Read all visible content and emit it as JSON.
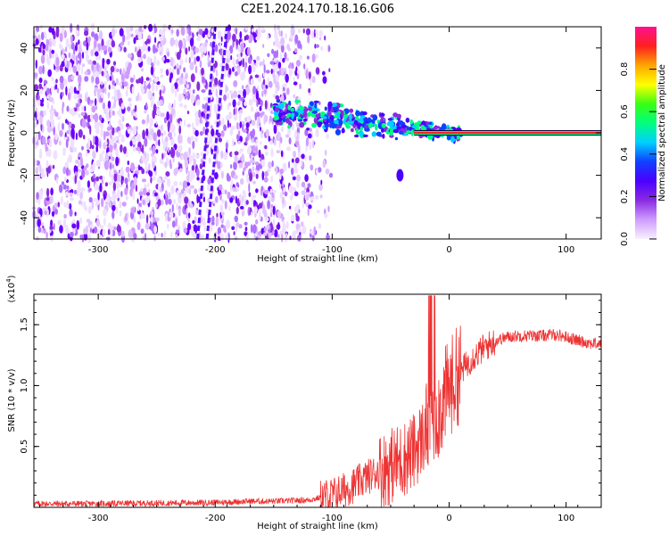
{
  "title": "C2E1.2024.170.18.16.G06",
  "colors": {
    "frame": "#000000",
    "snr_line": "#ee3333",
    "cmap": [
      "#f8f0ff",
      "#cf9cff",
      "#8a2be2",
      "#4b00ff",
      "#1040ff",
      "#00cfff",
      "#00ff7f",
      "#39ff14",
      "#ffff00",
      "#ffa500",
      "#ff2020",
      "#ff1090"
    ]
  },
  "chart_data": [
    {
      "type": "heatmap",
      "name": "spectrogram",
      "xlabel": "Height of straight line (km)",
      "ylabel": "Frequency (Hz)",
      "xlim": [
        -355,
        130
      ],
      "ylim": [
        -50,
        50
      ],
      "xticks": [
        -300,
        -200,
        -100,
        0,
        100
      ],
      "yticks": [
        -40,
        -20,
        0,
        20,
        40
      ],
      "colorbar": {
        "label": "Normalized spectral amplitude",
        "range": [
          0,
          1
        ],
        "ticks": [
          "0.0",
          "0.2",
          "0.4",
          "0.6",
          "0.8"
        ]
      },
      "features": {
        "noise_field_x": [
          -355,
          -115
        ],
        "diagonal_streaks": [
          {
            "x": [
              -207,
              -190
            ],
            "y": [
              -50,
              50
            ]
          },
          {
            "x": [
              -215,
              -200
            ],
            "y": [
              -50,
              50
            ]
          }
        ],
        "signal_ridge_start_km": -150,
        "tone_line": {
          "x": [
            -30,
            130
          ],
          "y": 0,
          "amplitude": 0.9
        }
      }
    },
    {
      "type": "line",
      "name": "snr",
      "xlabel": "Height of straight line (km)",
      "ylabel": "SNR (10 * v/v)",
      "multiplier": "(x10",
      "multiplier_exp": "4",
      "xlim": [
        -355,
        130
      ],
      "ylim": [
        0,
        17500
      ],
      "xticks": [
        -300,
        -200,
        -100,
        0,
        100
      ],
      "yticks": [
        {
          "value": 5000,
          "label": "0.5"
        },
        {
          "value": 10000,
          "label": "1.0"
        },
        {
          "value": 15000,
          "label": "1.5"
        }
      ],
      "series": [
        {
          "x": [
            -355,
            -300,
            -250,
            -200,
            -170,
            -150,
            -120,
            -100,
            -90,
            -80,
            -70,
            -60,
            -50,
            -40,
            -30,
            -20,
            -15,
            -10,
            -5,
            0,
            10,
            20,
            30,
            40,
            50,
            60,
            70,
            80,
            90,
            100,
            110,
            120,
            130
          ],
          "y": [
            300,
            300,
            350,
            400,
            500,
            500,
            600,
            1000,
            1400,
            1900,
            2500,
            3000,
            3400,
            3900,
            4600,
            6200,
            7500,
            7800,
            8700,
            9800,
            11200,
            12300,
            13100,
            13700,
            14000,
            14100,
            14100,
            14100,
            14200,
            14000,
            13700,
            13500,
            13400
          ]
        }
      ]
    }
  ]
}
